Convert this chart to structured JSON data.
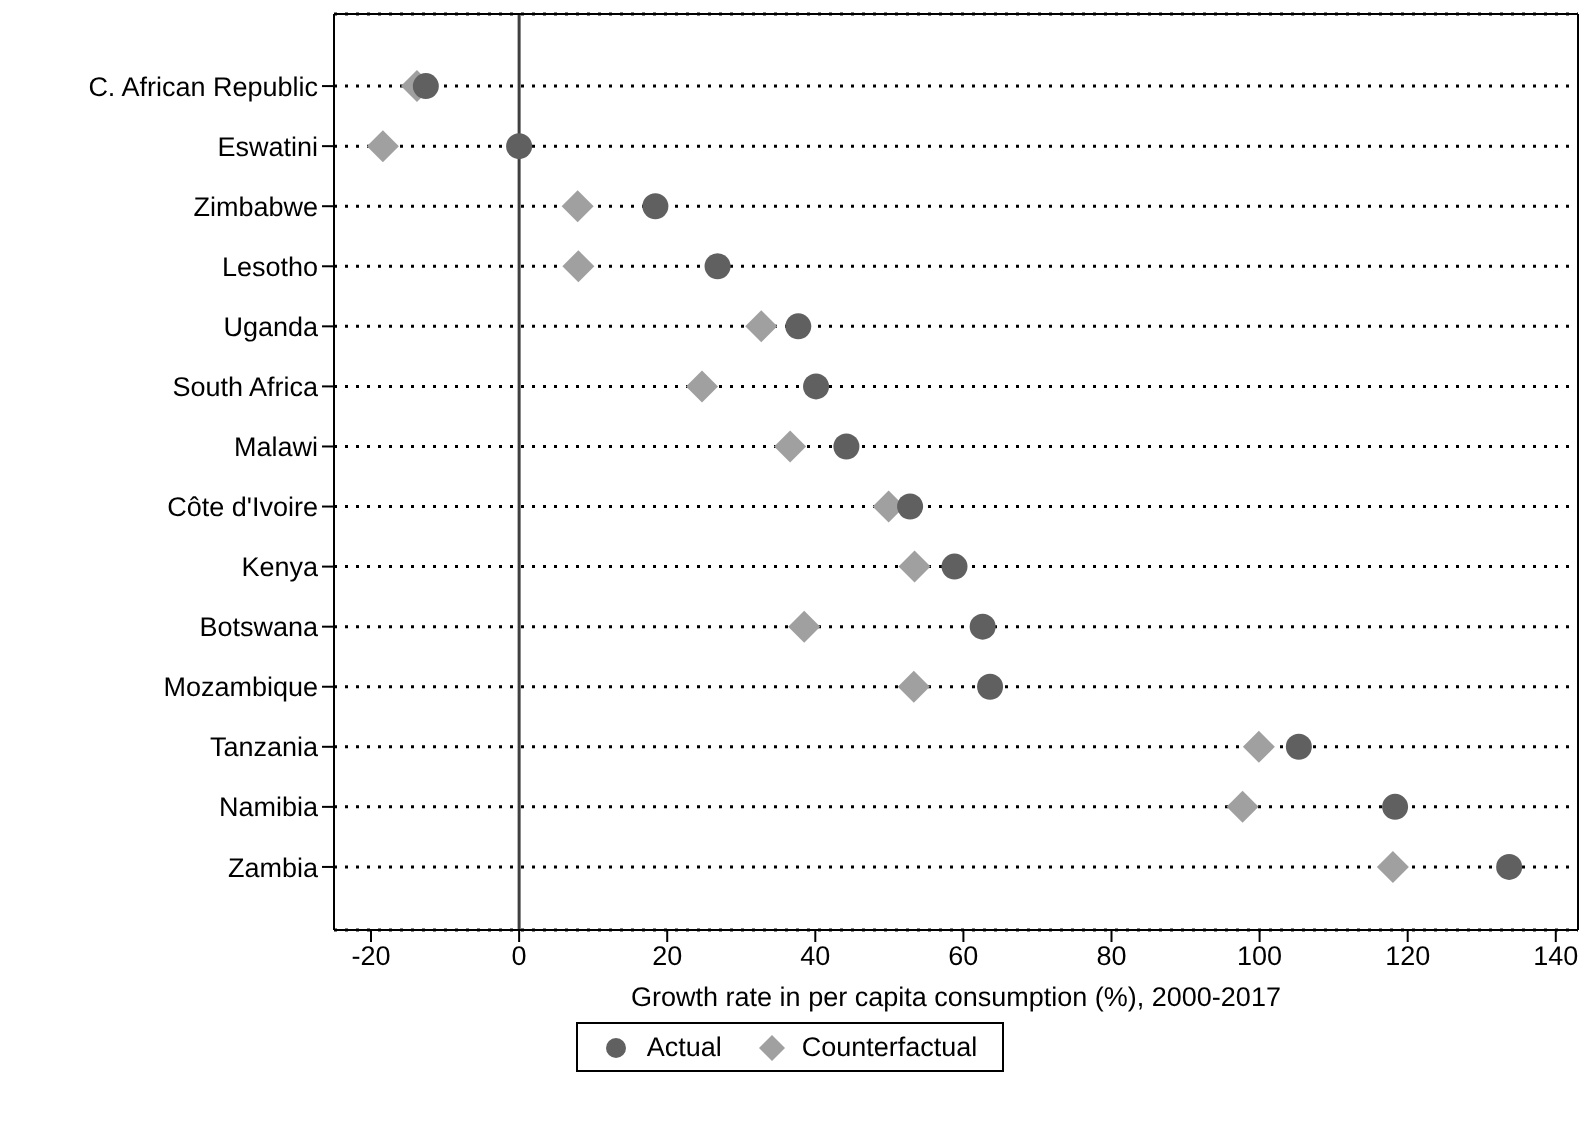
{
  "chart_data": {
    "type": "scatter",
    "xlabel": "Growth rate in per capita consumption (%), 2000-2017",
    "categories": [
      "C. African Republic",
      "Eswatini",
      "Zimbabwe",
      "Lesotho",
      "Uganda",
      "South Africa",
      "Malawi",
      "Côte d'Ivoire",
      "Kenya",
      "Botswana",
      "Mozambique",
      "Tanzania",
      "Namibia",
      "Zambia"
    ],
    "orientation": "horizontal",
    "series": [
      {
        "name": "Actual",
        "color": "#606060",
        "marker": "circle",
        "values": [
          -12.6,
          0,
          18.4,
          26.8,
          37.7,
          40.1,
          44.2,
          52.8,
          58.8,
          62.6,
          63.6,
          105.3,
          118.3,
          133.7
        ]
      },
      {
        "name": "Counterfactual",
        "color": "#a0a0a0",
        "marker": "diamond",
        "values": [
          -13.8,
          -18.4,
          7.9,
          8,
          32.7,
          24.7,
          36.6,
          49.9,
          53.4,
          38.5,
          53.3,
          99.9,
          97.7,
          118
        ]
      }
    ],
    "xlim": [
      -25,
      143
    ],
    "xticks": [
      -20,
      0,
      20,
      40,
      60,
      80,
      100,
      120,
      140
    ],
    "ref_lines": [
      {
        "axis": "x",
        "value": 0,
        "color": "#404040"
      }
    ],
    "grid": "y",
    "legend": "bottom"
  }
}
